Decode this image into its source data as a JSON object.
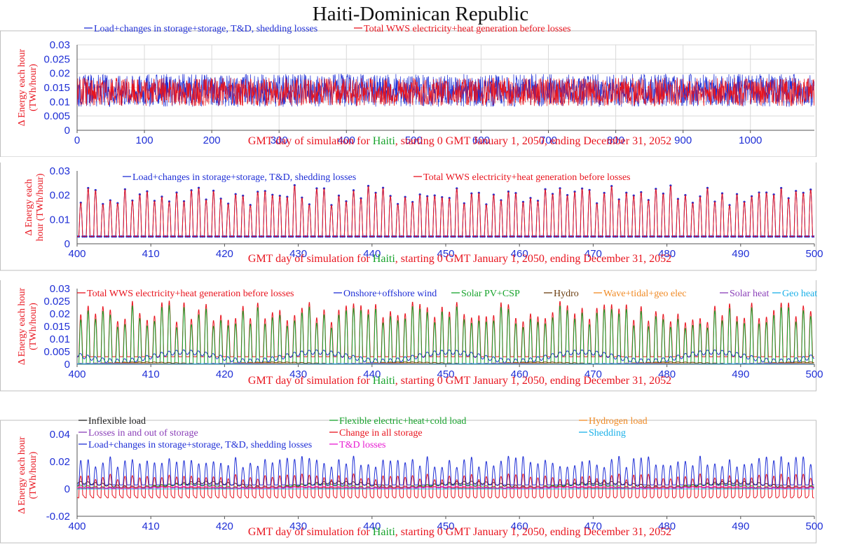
{
  "title": "Haiti-Dominican Republic",
  "colors": {
    "red": "#e8141e",
    "blue": "#1f2fd6",
    "green": "#17a32c",
    "brown": "#6b3d0f",
    "orange": "#f08a24",
    "purple": "#8a3fb8",
    "cyan": "#1ab0e8",
    "black": "#222222",
    "magenta": "#e81ad2",
    "grid": "#d9d9d9",
    "frame": "#bfbfbf"
  },
  "chart_data": [
    {
      "type": "line",
      "ylabel": "Δ Energy each hour\n(TWh/hour)",
      "xlabel": {
        "pre": "GMT day of simulation for ",
        "place": "Haiti",
        "post": ", starting 0 GMT January 1, 2050, ending December 31, 2052"
      },
      "xlim": [
        0,
        1095
      ],
      "ylim": [
        0,
        0.03
      ],
      "xticks": [
        0,
        100,
        200,
        300,
        400,
        500,
        600,
        700,
        800,
        900,
        1000
      ],
      "yticks": [
        0,
        0.005,
        0.01,
        0.015,
        0.02,
        0.025,
        0.03
      ],
      "ytick_labels": [
        "0",
        "0.005",
        "0.01",
        "0.015",
        "0.02",
        "0.025",
        "0.03"
      ],
      "grid": true,
      "series": [
        {
          "name": "Load+changes in storage+storage, T&D, shedding losses",
          "color": "blue",
          "marker": true,
          "typical_min": 0.003,
          "typical_max": 0.024
        },
        {
          "name": "Total WWS electricity+heat generation before losses",
          "color": "red",
          "typical_min": 0.004,
          "typical_max": 0.022
        }
      ]
    },
    {
      "type": "line",
      "ylabel": "Δ Energy each\nhour (TWh/hour)",
      "xlabel": {
        "pre": "GMT day of simulation for ",
        "place": "Haiti",
        "post": ", starting 0 GMT January 1, 2050, ending December 31, 2052"
      },
      "xlim": [
        400,
        500
      ],
      "ylim": [
        0,
        0.03
      ],
      "xticks": [
        400,
        410,
        420,
        430,
        440,
        450,
        460,
        470,
        480,
        490,
        500
      ],
      "yticks": [
        0,
        0.01,
        0.02,
        0.03
      ],
      "ytick_labels": [
        "0",
        "0.01",
        "0.02",
        "0.03"
      ],
      "grid": false,
      "series": [
        {
          "name": "Load+changes in storage+storage, T&D, shedding losses",
          "color": "blue",
          "marker": true,
          "daily_min": 0.003,
          "daily_peak": 0.021
        },
        {
          "name": "Total WWS electricity+heat generation before losses",
          "color": "red",
          "daily_min": 0.003,
          "daily_peak": 0.021
        }
      ]
    },
    {
      "type": "line",
      "ylabel": "Δ Energy each hour\n(TWh/hour)",
      "xlabel": {
        "pre": "GMT day of simulation for ",
        "place": "Haiti",
        "post": ", starting 0 GMT January 1, 2050, ending December 31, 2052"
      },
      "xlim": [
        400,
        500
      ],
      "ylim": [
        0,
        0.03
      ],
      "xticks": [
        400,
        410,
        420,
        430,
        440,
        450,
        460,
        470,
        480,
        490,
        500
      ],
      "yticks": [
        0,
        0.005,
        0.01,
        0.015,
        0.02,
        0.025,
        0.03
      ],
      "ytick_labels": [
        "0",
        "0.005",
        "0.01",
        "0.015",
        "0.02",
        "0.025",
        "0.03"
      ],
      "grid": false,
      "series": [
        {
          "name": "Total WWS electricity+heat generation before losses",
          "color": "red",
          "daily_peak": 0.021,
          "base": 0.003
        },
        {
          "name": "Onshore+offshore wind",
          "color": "blue",
          "typical": 0.003
        },
        {
          "name": "Solar PV+CSP",
          "color": "green",
          "daily_peak": 0.019
        },
        {
          "name": "Hydro",
          "color": "brown",
          "typical": 0.0005
        },
        {
          "name": "Wave+tidal+geo elec",
          "color": "orange",
          "typical": 0.0003
        },
        {
          "name": "Solar heat",
          "color": "purple",
          "typical": 0.0002
        },
        {
          "name": "Geo heat",
          "color": "cyan",
          "typical": 0.0001
        }
      ]
    },
    {
      "type": "line",
      "ylabel": "Δ Energy each hour\n(TWh/hour)",
      "xlabel": {
        "pre": "GMT day of simulation for ",
        "place": "Haiti",
        "post": ", starting 0 GMT January 1, 2050, ending December 31, 2052"
      },
      "xlim": [
        400,
        500
      ],
      "ylim": [
        -0.02,
        0.04
      ],
      "xticks": [
        400,
        410,
        420,
        430,
        440,
        450,
        460,
        470,
        480,
        490,
        500
      ],
      "yticks": [
        -0.02,
        0,
        0.02,
        0.04
      ],
      "ytick_labels": [
        "-0.02",
        "0",
        "0.02",
        "0.04"
      ],
      "grid": false,
      "series": [
        {
          "name": "Inflexible load",
          "color": "black",
          "typical": 0.003
        },
        {
          "name": "Flexible electric+heat+cold load",
          "color": "green",
          "typical": 0.002
        },
        {
          "name": "Hydrogen load",
          "color": "orange",
          "typical": 0.001
        },
        {
          "name": "Losses in and out of storage",
          "color": "purple",
          "typical": 0.001
        },
        {
          "name": "Change in all storage",
          "color": "red",
          "daily_max": 0.009,
          "daily_min": -0.006
        },
        {
          "name": "Shedding",
          "color": "cyan",
          "typical": 0.0
        },
        {
          "name": "Load+changes in storage+storage, T&D, shedding losses",
          "color": "blue",
          "daily_peak": 0.021,
          "daily_min": 0.003
        },
        {
          "name": "T&D losses",
          "color": "magenta",
          "typical": 0.001
        }
      ]
    }
  ]
}
